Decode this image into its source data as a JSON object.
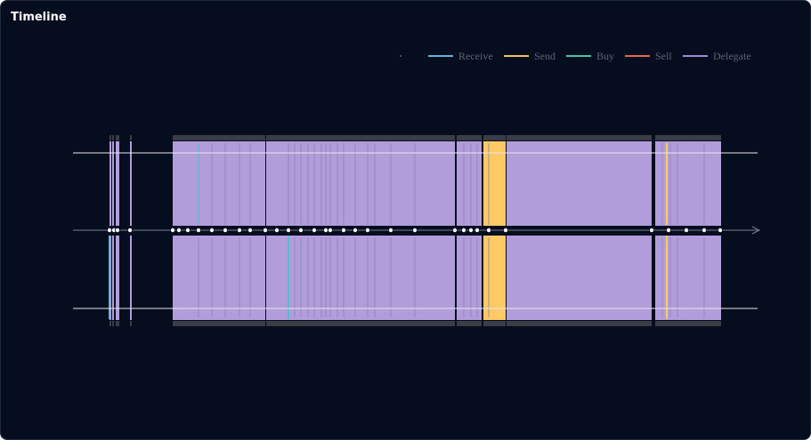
{
  "title": "Timeline",
  "legend": [
    {
      "name": "Receive",
      "color": "#5bb8d6"
    },
    {
      "name": "Send",
      "color": "#f6c25b"
    },
    {
      "name": "Buy",
      "color": "#4fc3a1"
    },
    {
      "name": "Sell",
      "color": "#e0694f"
    },
    {
      "name": "Delegate",
      "color": "#a48ad4"
    }
  ]
}
